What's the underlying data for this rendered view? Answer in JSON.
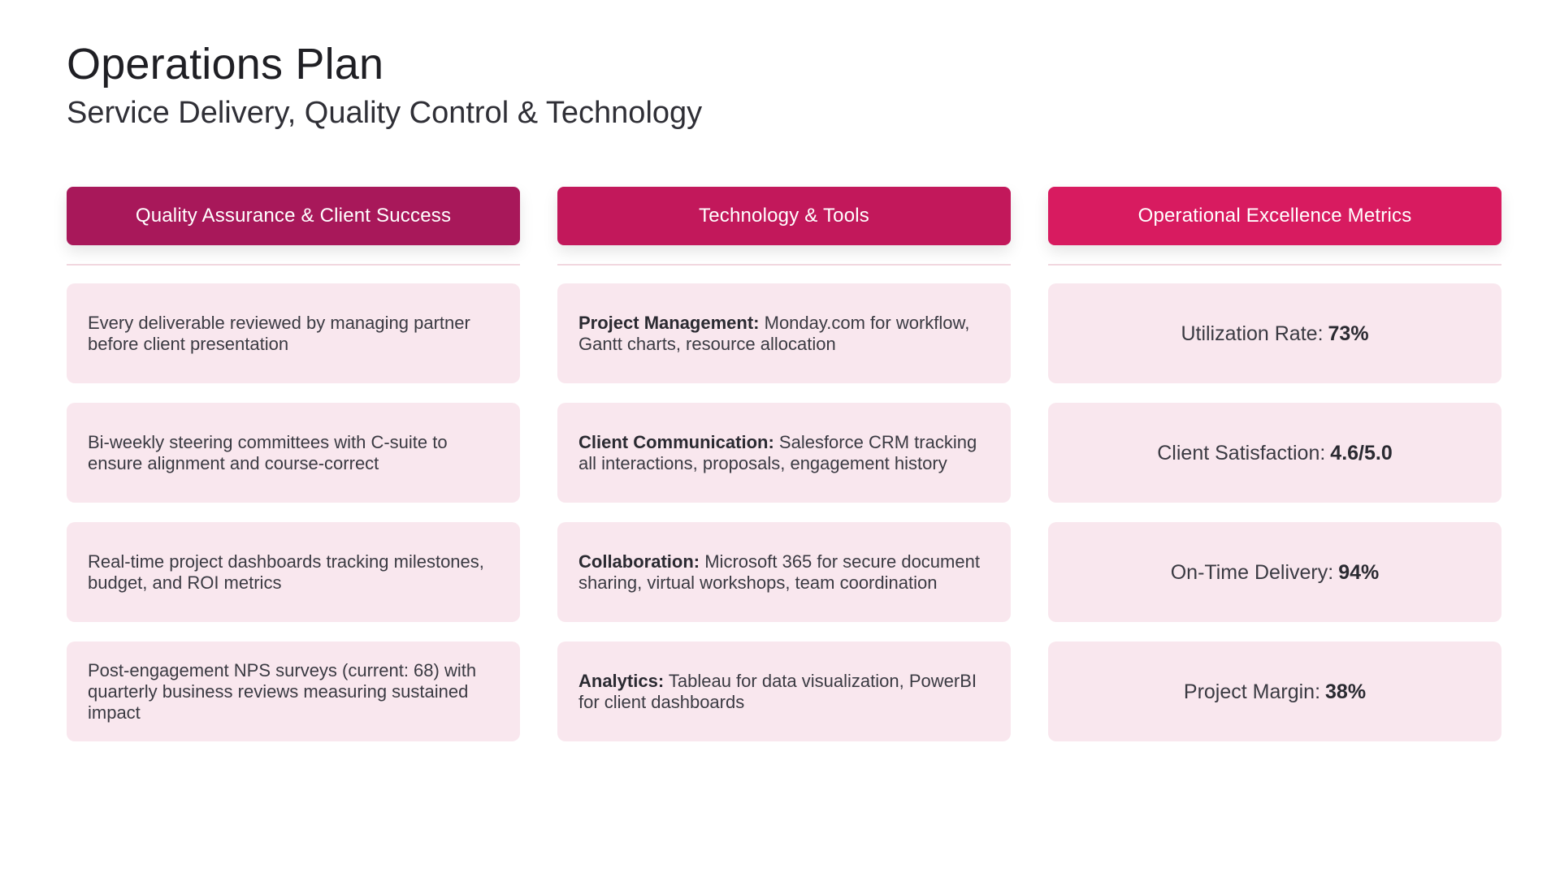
{
  "header": {
    "title": "Operations Plan",
    "subtitle": "Service Delivery, Quality Control & Technology"
  },
  "colors": {
    "col1": "#a8185a",
    "col2": "#c2185b",
    "col3": "#d81b60",
    "card_bg": "#f9e7ee"
  },
  "columns": [
    {
      "title": "Quality Assurance & Client Success",
      "items": [
        {
          "text": "Every deliverable reviewed by managing partner before client presentation"
        },
        {
          "text": "Bi-weekly steering committees with C-suite to ensure alignment and course-correct"
        },
        {
          "text": "Real-time project dashboards tracking milestones, budget, and ROI metrics"
        },
        {
          "text": "Post-engagement NPS surveys (current: 68) with quarterly business reviews measuring sustained impact"
        }
      ]
    },
    {
      "title": "Technology & Tools",
      "items": [
        {
          "lead": "Project Management:",
          "text": "Monday.com for workflow, Gantt charts, resource allocation"
        },
        {
          "lead": "Client Communication:",
          "text": "Salesforce CRM tracking all interactions, proposals, engagement history"
        },
        {
          "lead": "Collaboration:",
          "text": "Microsoft 365 for secure document sharing, virtual workshops, team coordination"
        },
        {
          "lead": "Analytics:",
          "text": "Tableau for data visualization, PowerBI for client dashboards"
        }
      ]
    },
    {
      "title": "Operational Excellence Metrics",
      "items": [
        {
          "label": "Utilization Rate:",
          "value": "73%"
        },
        {
          "label": "Client Satisfaction:",
          "value": "4.6/5.0"
        },
        {
          "label": "On-Time Delivery:",
          "value": "94%"
        },
        {
          "label": "Project Margin:",
          "value": "38%"
        }
      ]
    }
  ]
}
